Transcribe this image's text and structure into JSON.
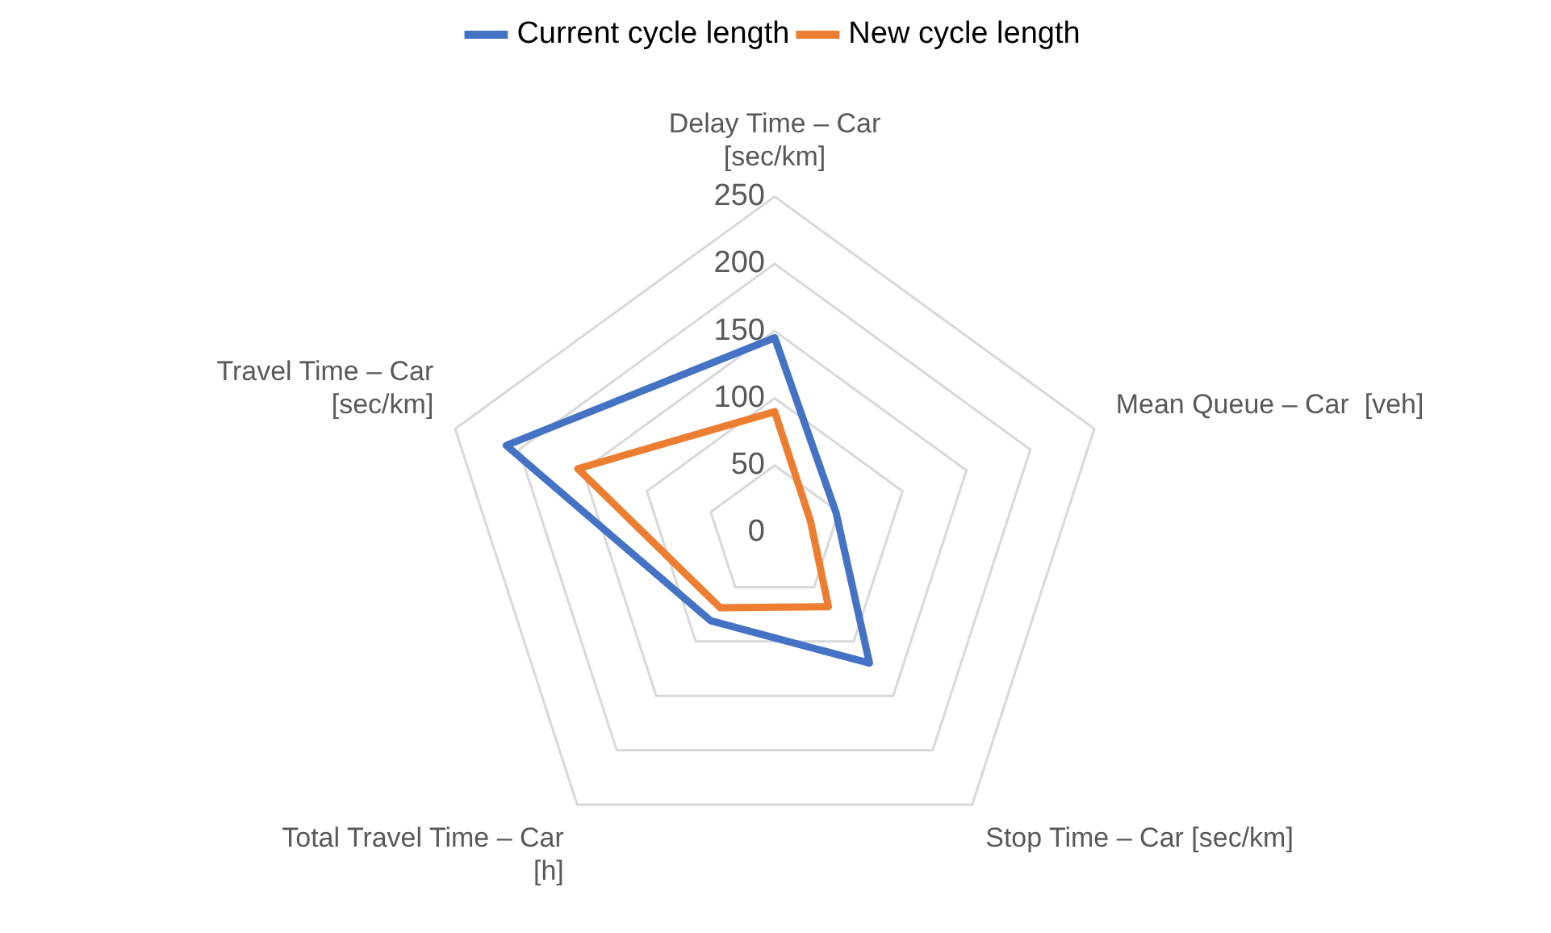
{
  "chart_data": {
    "type": "radar",
    "categories": [
      "Delay Time – Car [sec/km]",
      "Mean Queue – Car  [veh]",
      "Stop Time – Car [sec/km]",
      "Total Travel Time – Car [h]",
      "Travel Time – Car [sec/km]"
    ],
    "series": [
      {
        "name": "Current cycle length",
        "color": "#4472c4",
        "values": [
          145,
          48,
          120,
          81,
          210
        ]
      },
      {
        "name": "New cycle length",
        "color": "#ed7d31",
        "values": [
          90,
          28,
          68,
          69,
          154
        ]
      }
    ],
    "ylim": [
      0,
      250
    ],
    "yticks": [
      0,
      50,
      100,
      150,
      200,
      250
    ],
    "grid": true,
    "legend": "top",
    "marker": "none",
    "line_style": "solid"
  }
}
